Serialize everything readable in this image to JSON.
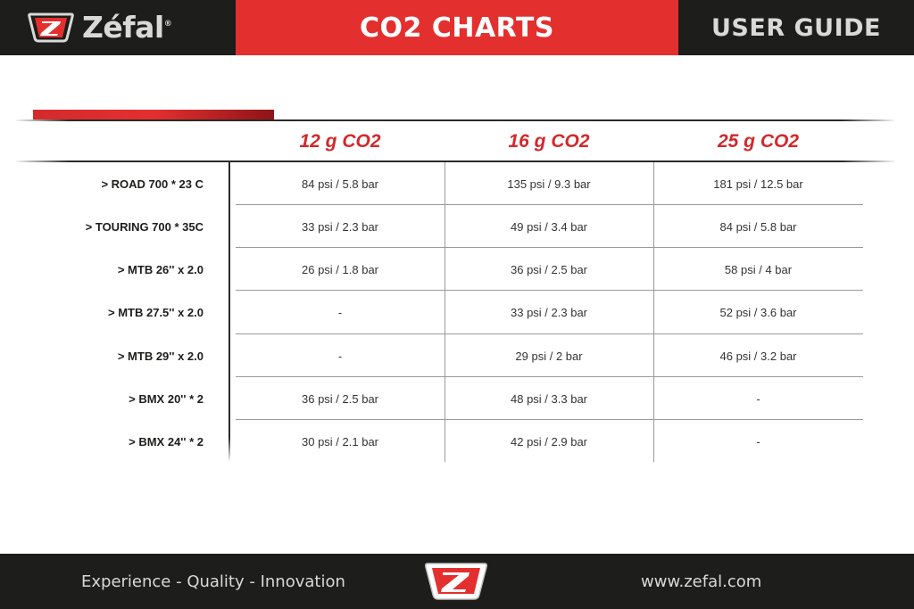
{
  "header": {
    "brand": "Zéfal",
    "brand_mark": "®",
    "title": "CO2 CHARTS",
    "subtitle": "USER GUIDE"
  },
  "table": {
    "columns": [
      "12 g CO2",
      "16 g CO2",
      "25 g CO2"
    ],
    "rows": [
      {
        "label": "> ROAD 700 * 23 C",
        "values": [
          "84 psi / 5.8 bar",
          "135 psi / 9.3 bar",
          "181 psi / 12.5 bar"
        ]
      },
      {
        "label": "> TOURING 700 * 35C",
        "values": [
          "33 psi / 2.3 bar",
          "49 psi / 3.4 bar",
          "84 psi / 5.8 bar"
        ]
      },
      {
        "label": "> MTB 26'' x 2.0",
        "values": [
          "26 psi / 1.8 bar",
          "36 psi / 2.5 bar",
          "58 psi / 4 bar"
        ]
      },
      {
        "label": "> MTB 27.5'' x 2.0",
        "values": [
          "-",
          "33 psi / 2.3 bar",
          "52 psi / 3.6 bar"
        ]
      },
      {
        "label": "> MTB 29'' x 2.0",
        "values": [
          "-",
          "29 psi / 2 bar",
          "46 psi / 3.2 bar"
        ]
      },
      {
        "label": "> BMX 20'' * 2",
        "values": [
          "36 psi / 2.5 bar",
          "48 psi / 3.3 bar",
          "-"
        ]
      },
      {
        "label": "> BMX 24'' * 2",
        "values": [
          "30 psi / 2.1 bar",
          "42 psi / 2.9 bar",
          "-"
        ]
      }
    ]
  },
  "footer": {
    "slogan": "Experience - Quality - Innovation",
    "website": "www.zefal.com"
  },
  "colors": {
    "brand_red": "#e3302f",
    "dark": "#1d1d1b",
    "light_text": "#d9d9d9"
  },
  "icons": {
    "header_logo": "zefal-z-shield-icon",
    "footer_logo": "zefal-z-shield-icon"
  }
}
